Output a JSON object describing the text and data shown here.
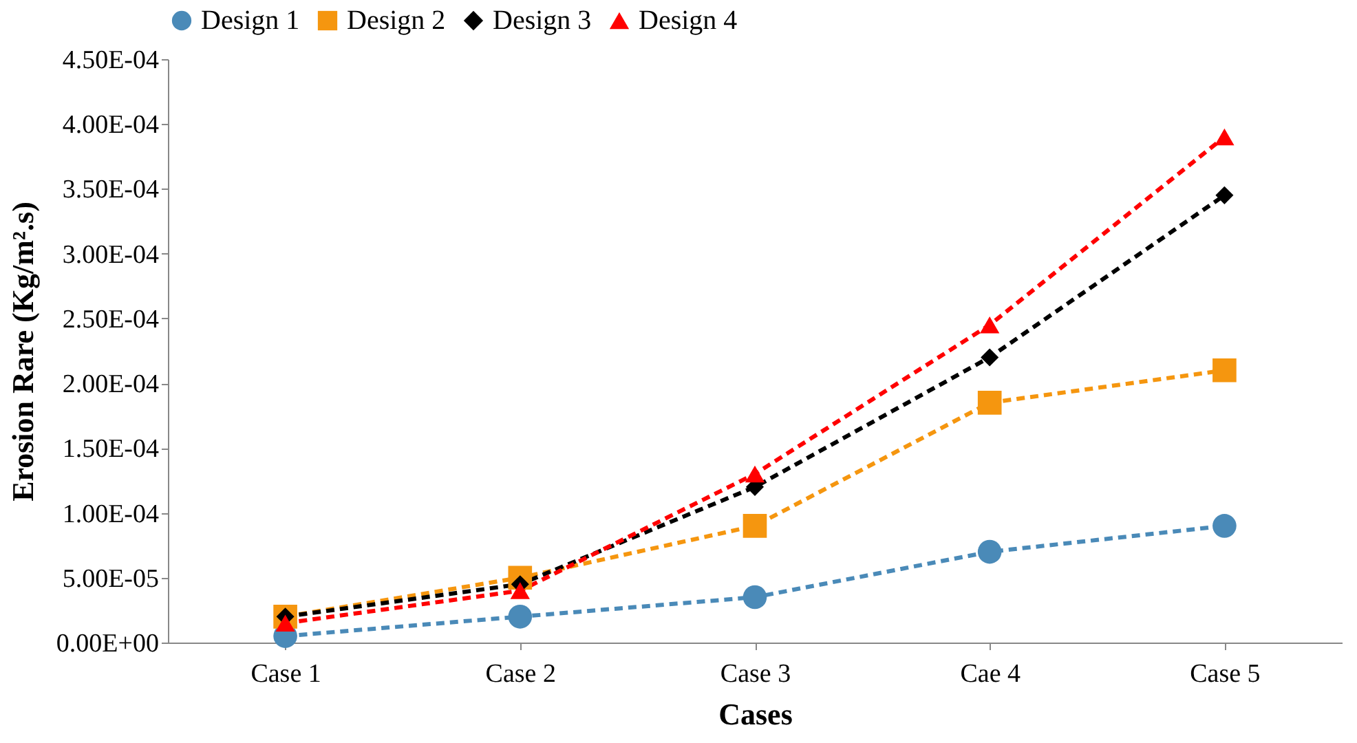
{
  "chart_data": {
    "type": "line",
    "xlabel": "Cases",
    "ylabel": "Erosion Rare (Kg/m².s)",
    "categories": [
      "Case 1",
      "Case 2",
      "Case 3",
      "Cae 4",
      "Case 5"
    ],
    "series": [
      {
        "name": "Design 1",
        "color": "#4a8ab8",
        "marker": "circle",
        "values": [
          5e-06,
          2e-05,
          3.5e-05,
          7e-05,
          9e-05
        ]
      },
      {
        "name": "Design 2",
        "color": "#f5960f",
        "marker": "square",
        "values": [
          2e-05,
          5e-05,
          9e-05,
          0.000185,
          0.00021
        ]
      },
      {
        "name": "Design 3",
        "color": "#000000",
        "marker": "diamond",
        "values": [
          2e-05,
          4.5e-05,
          0.00012,
          0.00022,
          0.000345
        ]
      },
      {
        "name": "Design 4",
        "color": "#ff0000",
        "marker": "triangle",
        "values": [
          1.5e-05,
          4e-05,
          0.00013,
          0.000245,
          0.00039
        ]
      }
    ],
    "ylim": [
      0,
      0.00045
    ],
    "yticks": [
      {
        "value": 0,
        "label": "0.00E+00"
      },
      {
        "value": 5e-05,
        "label": "5.00E-05"
      },
      {
        "value": 0.0001,
        "label": "1.00E-04"
      },
      {
        "value": 0.00015,
        "label": "1.50E-04"
      },
      {
        "value": 0.0002,
        "label": "2.00E-04"
      },
      {
        "value": 0.00025,
        "label": "2.50E-04"
      },
      {
        "value": 0.0003,
        "label": "3.00E-04"
      },
      {
        "value": 0.00035,
        "label": "3.50E-04"
      },
      {
        "value": 0.0004,
        "label": "4.00E-04"
      },
      {
        "value": 0.00045,
        "label": "4.50E-04"
      }
    ],
    "grid": false,
    "legend": "top",
    "line_style": "dashed"
  }
}
